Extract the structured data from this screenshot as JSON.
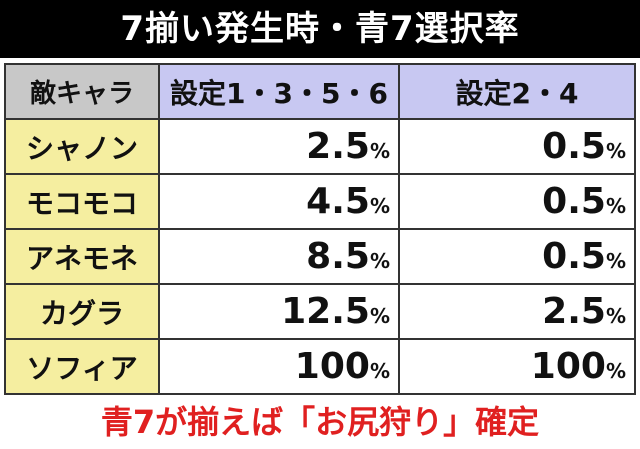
{
  "header": {
    "title": "7揃い発生時・青7選択率"
  },
  "table": {
    "columns": [
      "敵キャラ",
      "設定1・3・5・6",
      "設定2・4"
    ],
    "rows": [
      [
        "シャノン",
        "2.5%",
        "0.5%"
      ],
      [
        "モコモコ",
        "4.5%",
        "0.5%"
      ],
      [
        "アネモネ",
        "8.5%",
        "0.5%"
      ],
      [
        "カグラ",
        "12.5%",
        "2.5%"
      ],
      [
        "ソフィア",
        "100%",
        "100%"
      ]
    ]
  },
  "footer": {
    "note": "青7が揃えば「お尻狩り」確定"
  }
}
